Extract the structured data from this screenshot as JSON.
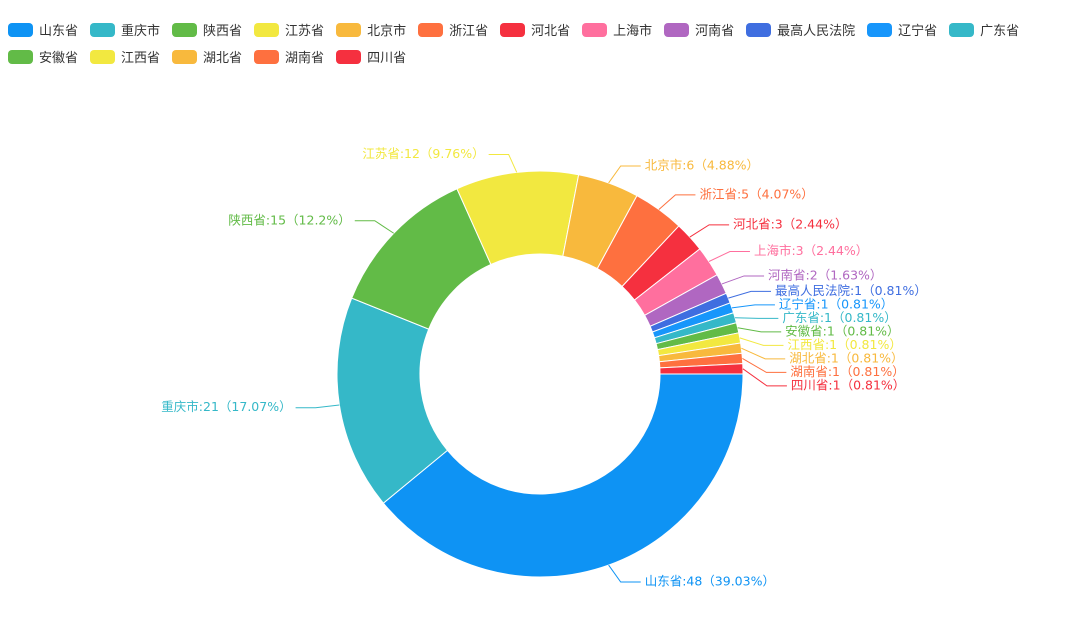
{
  "chart_data": {
    "type": "pie",
    "donut": true,
    "categories": [
      "山东省",
      "重庆市",
      "陕西省",
      "江苏省",
      "北京市",
      "浙江省",
      "河北省",
      "上海市",
      "河南省",
      "最高人民法院",
      "辽宁省",
      "广东省",
      "安徽省",
      "江西省",
      "湖北省",
      "湖南省",
      "四川省"
    ],
    "values": [
      48,
      21,
      15,
      12,
      6,
      5,
      3,
      3,
      2,
      1,
      1,
      1,
      1,
      1,
      1,
      1,
      1
    ],
    "value_labels": [
      "山东省:48（39.03%）",
      "重庆市:21（17.07%）",
      "陕西省:15（12.2%）",
      "江苏省:12（9.76%）",
      "北京市:6（4.88%）",
      "浙江省:5（4.07%）",
      "河北省:3（2.44%）",
      "上海市:3（2.44%）",
      "河南省:2（1.63%）",
      "最高人民法院:1（0.81%）",
      "辽宁省:1（0.81%）",
      "广东省:1（0.81%）",
      "安徽省:1（0.81%）",
      "江西省:1（0.81%）",
      "湖北省:1（0.81%）",
      "湖南省:1（0.81%）",
      "四川省:1（0.81%）"
    ],
    "colors": [
      "#0e93f4",
      "#35b8c8",
      "#62bb47",
      "#f2e840",
      "#f8b93d",
      "#fe703f",
      "#f5303f",
      "#ff6f9e",
      "#b067c1",
      "#3f6ee0",
      "#1796fb",
      "#35b8c8",
      "#62bb47",
      "#f2e840",
      "#f8b93d",
      "#fe703f",
      "#f5303f"
    ],
    "legend_position": "top"
  }
}
